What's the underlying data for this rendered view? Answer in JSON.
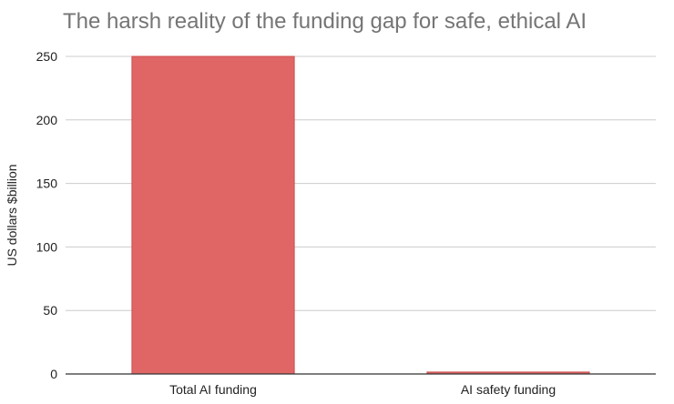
{
  "chart_data": {
    "type": "bar",
    "title": "The harsh reality of the funding gap for safe, ethical AI",
    "xlabel": "",
    "ylabel": "US dollars $billion",
    "categories": [
      "Total AI funding",
      "AI safety funding"
    ],
    "values": [
      250,
      1.5
    ],
    "ylim": [
      0,
      250
    ],
    "yticks": [
      "0",
      "50",
      "100",
      "150",
      "200",
      "250"
    ],
    "grid": true,
    "legend": "none",
    "bar_color": "#e06666",
    "bar_border_color": "#cc4b4b",
    "grid_color": "#cccccc",
    "axis_color": "#333333"
  }
}
